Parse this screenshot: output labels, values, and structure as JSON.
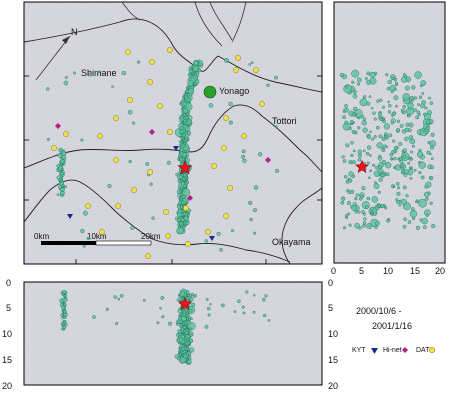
{
  "map": {
    "north_label": "N",
    "places": {
      "shimane": "Shimane",
      "yonago": "Yonago",
      "tottori": "Tottori",
      "okayama": "Okayama"
    },
    "scale": {
      "zero": "0km",
      "ten": "10km",
      "twenty": "20km"
    }
  },
  "side_panel": {
    "ticks": [
      "0",
      "5",
      "10",
      "15",
      "20"
    ]
  },
  "bottom_panel": {
    "ticks": [
      "0",
      "5",
      "10",
      "15",
      "20"
    ]
  },
  "right_axis_ticks": [
    "0",
    "5",
    "10",
    "15",
    "20"
  ],
  "date_range": {
    "start": "2000/10/6 -",
    "end": "2001/1/16"
  },
  "legend": {
    "kyt": "KYT",
    "hinet": "Hi-net",
    "dat": "DAT"
  },
  "colors": {
    "sea": "#dcdce4",
    "quake": "#5fc3a0",
    "quake_edge": "#1e6b55",
    "mainshock": "#e8141e",
    "kyt": "#1a2a8c",
    "hinet": "#b0208a",
    "dat": "#f1e04a",
    "yonago": "#2aa02a"
  }
}
